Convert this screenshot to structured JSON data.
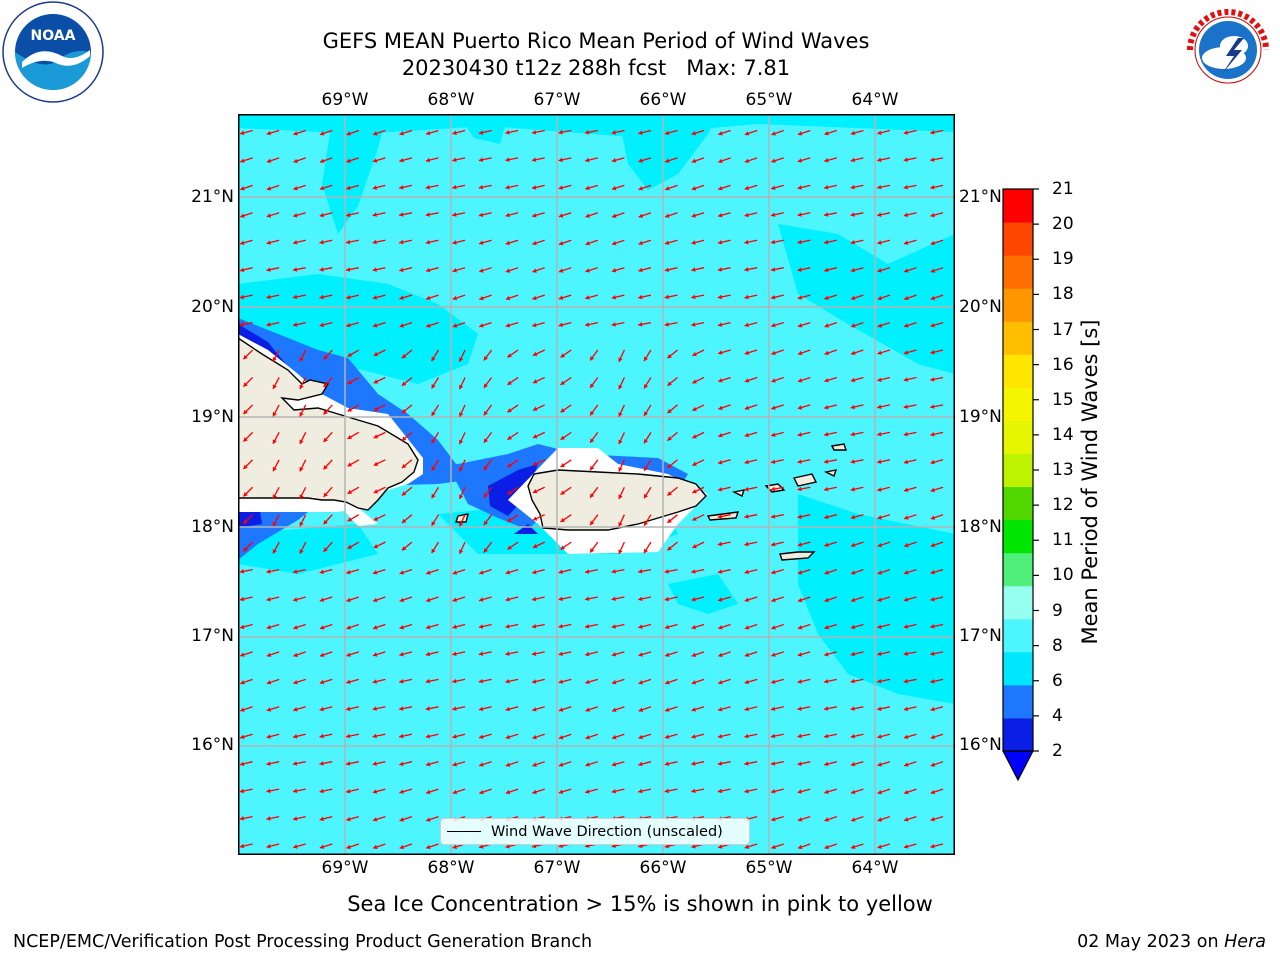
{
  "title": {
    "line1": "GEFS MEAN Puerto Rico Mean Period of Wind Waves",
    "line2": "20230430 t12z 288h fcst   Max: 7.81"
  },
  "map": {
    "lon_ticks": [
      "69°W",
      "68°W",
      "67°W",
      "66°W",
      "65°W",
      "64°W"
    ],
    "lat_ticks": [
      "21°N",
      "20°N",
      "19°N",
      "18°N",
      "17°N",
      "16°N"
    ],
    "lon_range": [
      -70.0,
      -63.25
    ],
    "lat_range": [
      15.0,
      21.75
    ],
    "land_color": "#eeeddf",
    "arrow_color": "#ff0000",
    "grid": true,
    "field_note": "wind wave period mostly 6-8 s over ocean, lower near coasts"
  },
  "colorbar": {
    "label": "Mean Period of Wind Waves [s]",
    "ticks": [
      "2",
      "4",
      "6",
      "8",
      "9",
      "10",
      "11",
      "12",
      "13",
      "14",
      "15",
      "16",
      "17",
      "18",
      "19",
      "20",
      "21"
    ],
    "colors": [
      "#0a1ee6",
      "#1e78ff",
      "#00e6ff",
      "#4cf5ff",
      "#96fff0",
      "#50f07a",
      "#00e600",
      "#52d600",
      "#bdf200",
      "#e6f500",
      "#f5f500",
      "#ffe600",
      "#ffbe00",
      "#ff9600",
      "#ff6e00",
      "#ff4600",
      "#ff0000"
    ],
    "under_color": "#0000ff"
  },
  "legend": {
    "label": "Wind Wave Direction (unscaled)"
  },
  "caption": "Sea Ice Concentration > 15% is shown in pink to yellow",
  "footer": {
    "left": "NCEP/EMC/Verification Post Processing Product Generation Branch",
    "right_date": "02 May 2023 on",
    "right_machine": "Hera"
  },
  "logos": {
    "noaa_text": "NOAA",
    "noaa_ring": "NATIONAL OCEANIC AND ATMOSPHERIC ADMINISTRATION · U.S. DEPARTMENT OF COMMERCE",
    "nws_ring": "NATIONAL WEATHER SERVICE"
  }
}
